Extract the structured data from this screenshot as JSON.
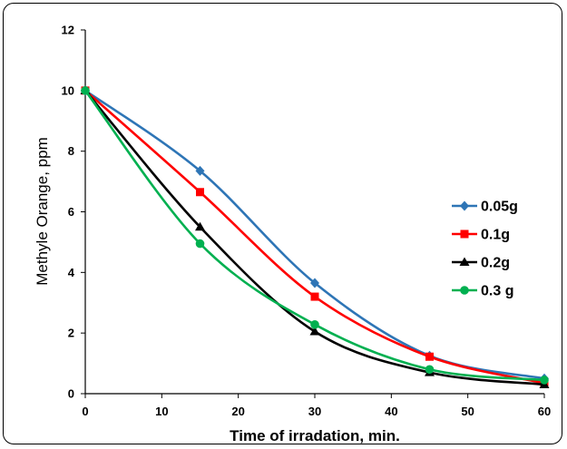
{
  "chart_data": {
    "type": "line",
    "title": "",
    "xlabel": "Time of irradation, min.",
    "ylabel": "Methyle Orange, ppm",
    "xlim": [
      0,
      60
    ],
    "ylim": [
      0,
      12
    ],
    "xticks": [
      0,
      10,
      20,
      30,
      40,
      50,
      60
    ],
    "yticks": [
      0,
      2,
      4,
      6,
      8,
      10,
      12
    ],
    "grid": false,
    "smooth": true,
    "legend_position": "right",
    "x": [
      0,
      15,
      30,
      45,
      60
    ],
    "series": [
      {
        "name": "0.05g",
        "values": [
          10,
          7.35,
          3.65,
          1.25,
          0.5
        ],
        "color": "#2E75B6",
        "marker": "diamond"
      },
      {
        "name": "0.1g",
        "values": [
          10,
          6.65,
          3.2,
          1.22,
          0.35
        ],
        "color": "#FF0000",
        "marker": "square"
      },
      {
        "name": "0.2g",
        "values": [
          10,
          5.5,
          2.05,
          0.7,
          0.3
        ],
        "color": "#000000",
        "marker": "triangle"
      },
      {
        "name": "0.3 g",
        "values": [
          10,
          4.95,
          2.28,
          0.8,
          0.45
        ],
        "color": "#00B050",
        "marker": "circle"
      }
    ]
  }
}
